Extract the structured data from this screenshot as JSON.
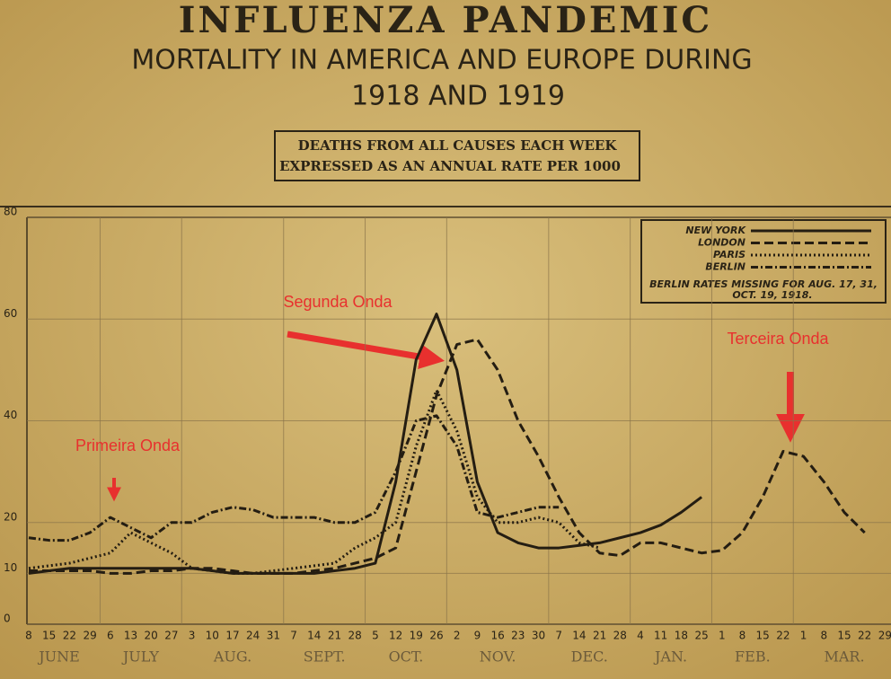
{
  "chart_data": {
    "type": "line",
    "title": "INFLUENZA PANDEMIC",
    "subtitle": [
      "MORTALITY IN AMERICA AND EUROPE DURING",
      "1918 AND 1919"
    ],
    "boxed_note": [
      "DEATHS FROM ALL CAUSES EACH WEEK",
      "EXPRESSED AS AN ANNUAL RATE PER 1000"
    ],
    "categories": [
      "8",
      "15",
      "22",
      "29",
      "6",
      "13",
      "20",
      "27",
      "3",
      "10",
      "17",
      "24",
      "31",
      "7",
      "14",
      "21",
      "28",
      "5",
      "12",
      "19",
      "26",
      "2",
      "9",
      "16",
      "23",
      "30",
      "7",
      "14",
      "21",
      "28",
      "4",
      "11",
      "18",
      "25",
      "1",
      "8",
      "15",
      "22",
      "1",
      "8",
      "15",
      "22",
      "29"
    ],
    "months": [
      "JUNE",
      "JULY",
      "AUG.",
      "SEPT.",
      "OCT.",
      "NOV.",
      "DEC.",
      "JAN.",
      "FEB.",
      "MAR."
    ],
    "ylim": [
      0,
      80
    ],
    "yticks": [
      0,
      10,
      20,
      40,
      60,
      80
    ],
    "grid": true,
    "series": [
      {
        "name": "NEW YORK",
        "color": "#241d12",
        "style": "solid",
        "values": [
          10,
          10.5,
          11,
          11,
          11,
          11,
          11,
          11,
          11,
          10.5,
          10,
          10,
          10,
          10,
          10,
          10.5,
          11,
          12,
          28,
          52,
          61,
          50,
          28,
          18,
          16,
          15,
          15,
          15.5,
          16,
          17,
          18,
          19.5,
          22,
          25,
          null,
          null,
          null,
          null,
          null,
          null,
          null,
          null,
          null
        ]
      },
      {
        "name": "LONDON",
        "color": "#241d12",
        "style": "dashed",
        "values": [
          10.5,
          10.5,
          10.5,
          10.5,
          10,
          10,
          10.5,
          10.5,
          11,
          11,
          10.5,
          10,
          10,
          10,
          10.5,
          11,
          12,
          13,
          15,
          30,
          45,
          55,
          56,
          50,
          40,
          33,
          25,
          18,
          14,
          13.5,
          16,
          16,
          15,
          14,
          14.5,
          18,
          25,
          34,
          33,
          28,
          22,
          18,
          null
        ]
      },
      {
        "name": "PARIS",
        "color": "#241d12",
        "style": "dotted",
        "values": [
          11,
          11.5,
          12,
          13,
          14,
          18,
          16,
          14,
          11,
          10.5,
          10,
          10,
          10.5,
          11,
          11.5,
          12,
          15,
          17,
          20,
          35,
          46,
          38,
          25,
          20,
          20,
          21,
          20,
          16,
          15,
          null,
          null,
          null,
          null,
          null,
          null,
          null,
          null,
          null,
          null,
          null,
          null,
          null,
          null
        ]
      },
      {
        "name": "BERLIN",
        "color": "#241d12",
        "style": "dashdot",
        "values": [
          17,
          16.5,
          16.5,
          18,
          21,
          19,
          17,
          20,
          20,
          22,
          23,
          22.5,
          21,
          21,
          21,
          20,
          20,
          22,
          30,
          40,
          41,
          35,
          22,
          21,
          22,
          23,
          23,
          null,
          null,
          null,
          null,
          null,
          null,
          null,
          null,
          null,
          null,
          null,
          null,
          null,
          null,
          null,
          null
        ]
      }
    ],
    "legend_note": [
      "BERLIN RATES MISSING FOR AUG. 17, 31,",
      "OCT. 19, 1918."
    ],
    "annotations": [
      "Primeira Onda",
      "Segunda Onda",
      "Terceira Onda"
    ]
  }
}
